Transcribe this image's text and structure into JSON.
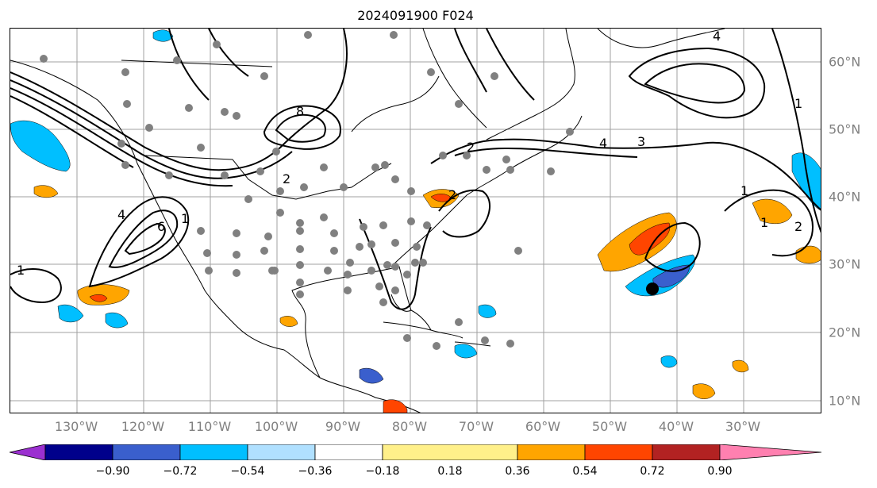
{
  "title": "2024091900 F024",
  "map": {
    "lon_labels": [
      "130°W",
      "120°W",
      "110°W",
      "100°W",
      "90°W",
      "80°W",
      "70°W",
      "60°W",
      "50°W",
      "40°W",
      "30°W"
    ],
    "lat_labels": [
      "60°N",
      "50°N",
      "40°N",
      "30°N",
      "20°N",
      "10°N"
    ],
    "contour_labels": [
      "1",
      "2",
      "4",
      "6",
      "8",
      "1",
      "2",
      "4",
      "1",
      "2",
      "3",
      "4",
      "1",
      "1",
      "2"
    ],
    "marker": "storm-center-dot"
  },
  "colorbar": {
    "tick_labels": [
      "−0.90",
      "−0.72",
      "−0.54",
      "−0.36",
      "−0.18",
      "0.18",
      "0.36",
      "0.54",
      "0.72",
      "0.90"
    ],
    "colors": [
      "#9b30d0",
      "#00008b",
      "#3a5fcd",
      "#00bfff",
      "#b0e0ff",
      "#ffffff",
      "#fff08a",
      "#ffa500",
      "#ff4500",
      "#b22222",
      "#ff80b0"
    ]
  }
}
